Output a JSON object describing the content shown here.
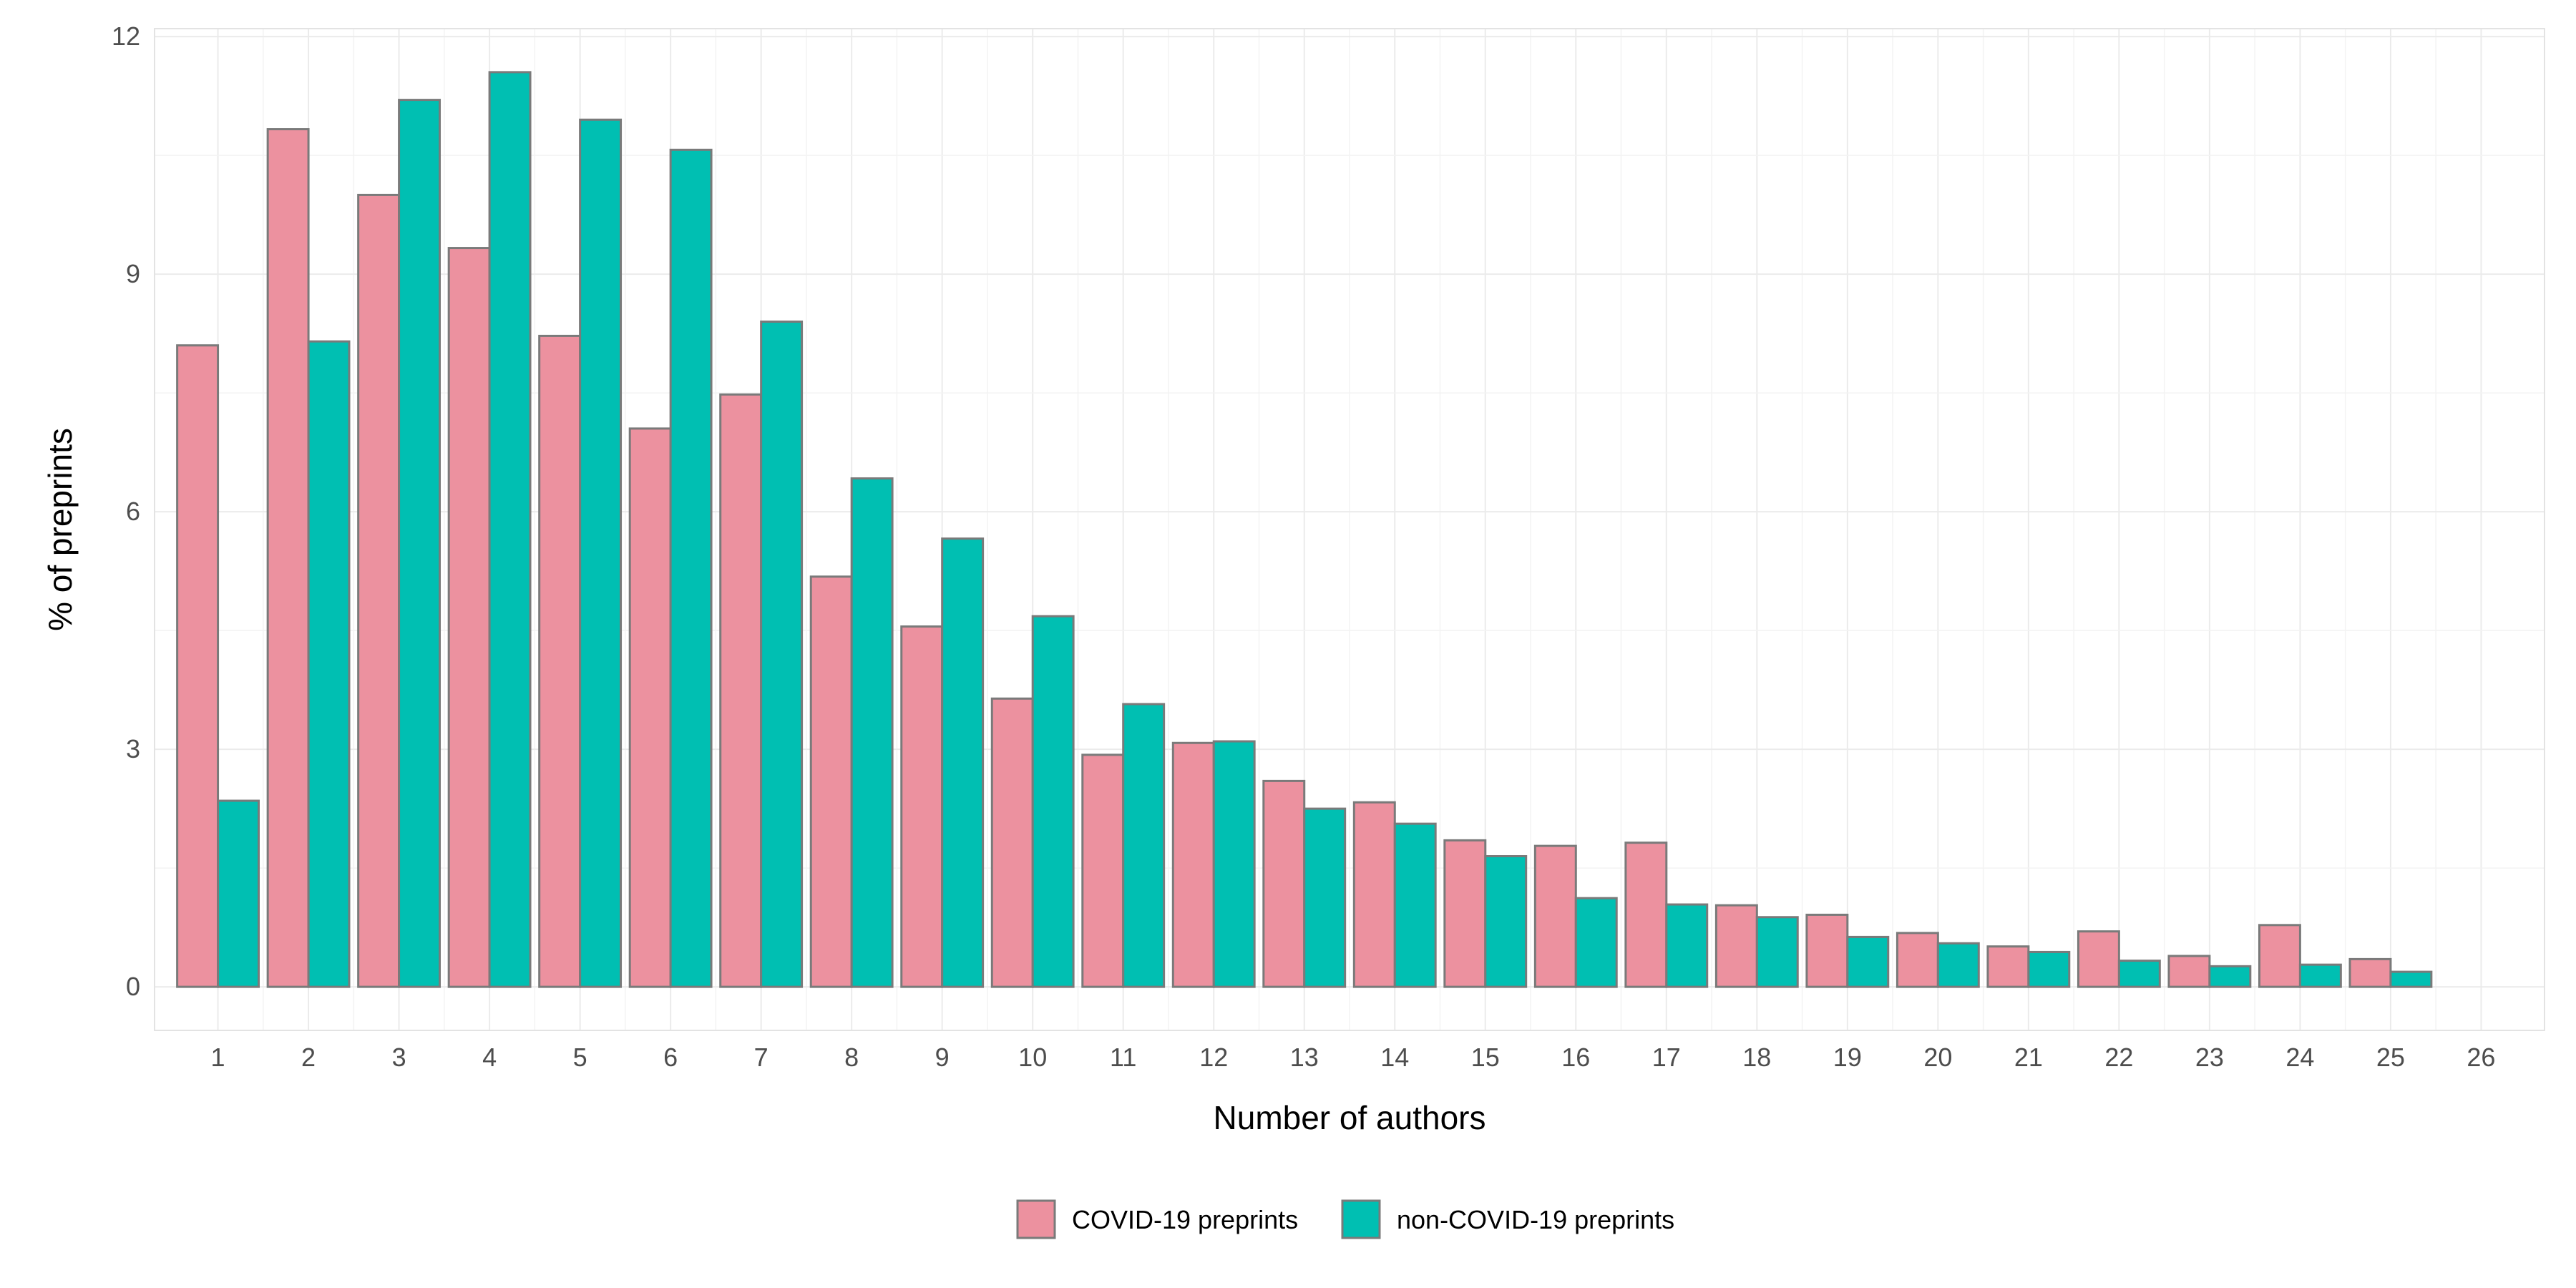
{
  "chart_data": {
    "type": "bar",
    "xlabel": "Number of authors",
    "ylabel": "% of preprints",
    "categories": [
      1,
      2,
      3,
      4,
      5,
      6,
      7,
      8,
      9,
      10,
      11,
      12,
      13,
      14,
      15,
      16,
      17,
      18,
      19,
      20,
      21,
      22,
      23,
      24,
      25
    ],
    "x_ticks": [
      1,
      2,
      3,
      4,
      5,
      6,
      7,
      8,
      9,
      10,
      11,
      12,
      13,
      14,
      15,
      16,
      17,
      18,
      19,
      20,
      21,
      22,
      23,
      24,
      25,
      26
    ],
    "xlim": [
      0.3,
      26.7
    ],
    "ylim": [
      -0.55,
      12.1
    ],
    "y_ticks": [
      0,
      3,
      6,
      9,
      12
    ],
    "grid": true,
    "legend_position": "bottom",
    "series": [
      {
        "name": "COVID-19 preprints",
        "color": "#ec919f",
        "values": [
          8.1,
          10.83,
          10.0,
          9.33,
          8.22,
          7.05,
          7.48,
          5.18,
          4.55,
          3.64,
          2.93,
          3.08,
          2.6,
          2.33,
          1.85,
          1.78,
          1.82,
          1.03,
          0.91,
          0.68,
          0.51,
          0.7,
          0.39,
          0.78,
          0.35
        ]
      },
      {
        "name": "non-COVID-19 preprints",
        "color": "#00bfb2",
        "values": [
          2.35,
          8.15,
          11.2,
          11.55,
          10.95,
          10.57,
          8.4,
          6.42,
          5.66,
          4.68,
          3.57,
          3.1,
          2.25,
          2.06,
          1.65,
          1.12,
          1.04,
          0.88,
          0.63,
          0.55,
          0.44,
          0.33,
          0.26,
          0.28,
          0.19
        ]
      }
    ],
    "bar_border_color": "#7a7a7a",
    "grid_color": "#ebebeb"
  }
}
